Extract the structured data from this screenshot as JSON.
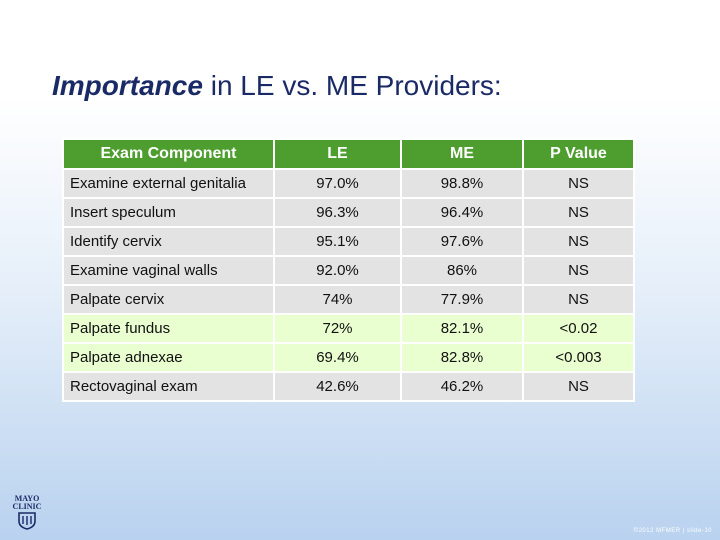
{
  "title": {
    "emphasis": "Importance",
    "rest": " in LE vs. ME Providers:"
  },
  "table": {
    "headers": [
      "Exam Component",
      "LE",
      "ME",
      "P Value"
    ],
    "rows": [
      [
        "Examine external genitalia",
        "97.0%",
        "98.8%",
        "NS"
      ],
      [
        "Insert speculum",
        "96.3%",
        "96.4%",
        "NS"
      ],
      [
        "Identify cervix",
        "95.1%",
        "97.6%",
        "NS"
      ],
      [
        "Examine vaginal walls",
        "92.0%",
        "86%",
        "NS"
      ],
      [
        "Palpate cervix",
        "74%",
        "77.9%",
        "NS"
      ],
      [
        "Palpate fundus",
        "72%",
        "82.1%",
        "<0.02"
      ],
      [
        "Palpate adnexae",
        "69.4%",
        "82.8%",
        "<0.003"
      ],
      [
        "Rectovaginal exam",
        "42.6%",
        "46.2%",
        "NS"
      ]
    ]
  },
  "logo": {
    "line1": "MAYO",
    "line2": "CLINIC",
    "icon": "mayo-shield-icon"
  },
  "footer": "©2012 MFMER | slide-10"
}
